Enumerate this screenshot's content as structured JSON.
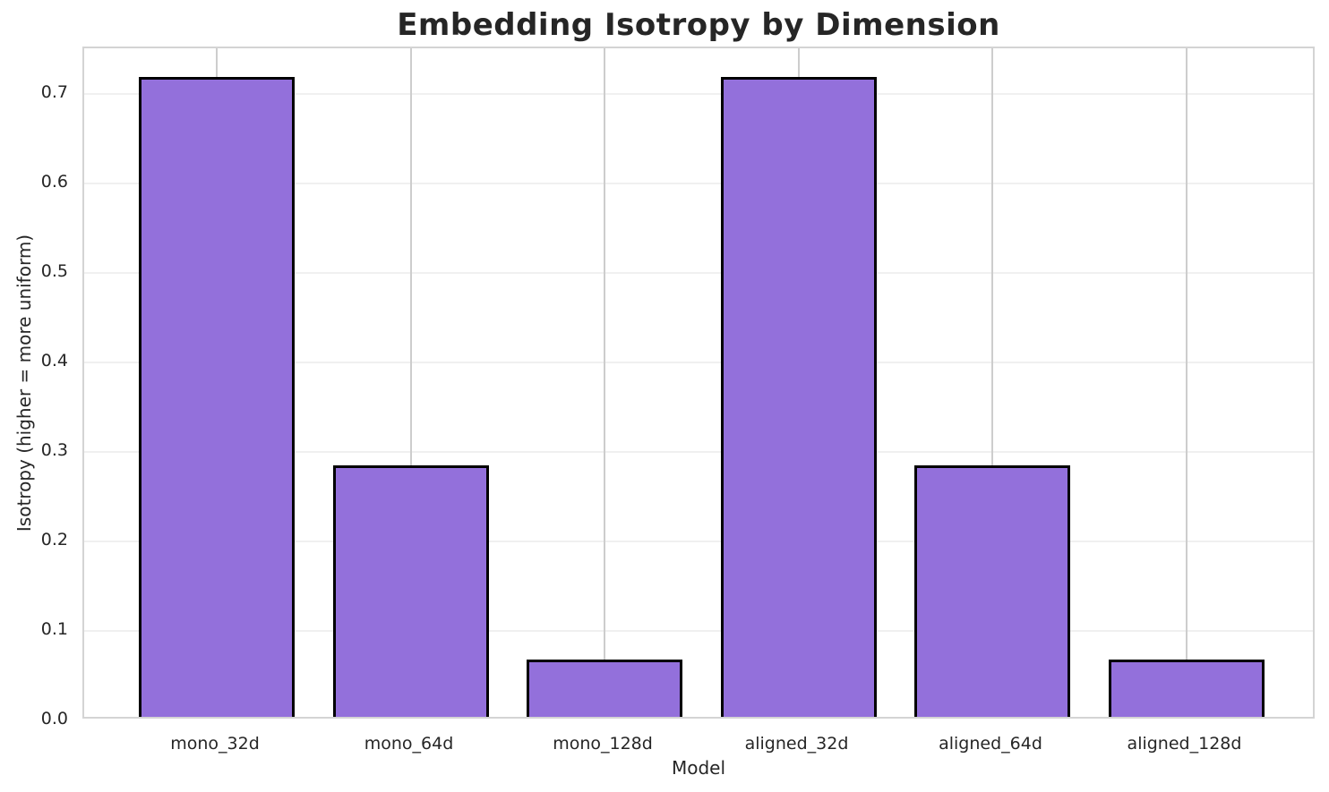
{
  "chart_data": {
    "type": "bar",
    "title": "Embedding Isotropy by Dimension",
    "xlabel": "Model",
    "ylabel": "Isotropy (higher = more uniform)",
    "categories": [
      "mono_32d",
      "mono_64d",
      "mono_128d",
      "aligned_32d",
      "aligned_64d",
      "aligned_128d"
    ],
    "values": [
      0.715,
      0.281,
      0.064,
      0.715,
      0.281,
      0.064
    ],
    "ylim": [
      0,
      0.751
    ],
    "yticks": [
      0.0,
      0.1,
      0.2,
      0.3,
      0.4,
      0.5,
      0.6,
      0.7
    ],
    "grid": "on",
    "legend": "none",
    "colors": {
      "bar_fill": "#9370DB",
      "bar_edge": "#000000",
      "grid_horizontal": "#f0f0f0",
      "grid_vertical": "#cdcdcd",
      "spine": "#d4d4d4",
      "text": "#262626",
      "background": "#ffffff"
    }
  }
}
